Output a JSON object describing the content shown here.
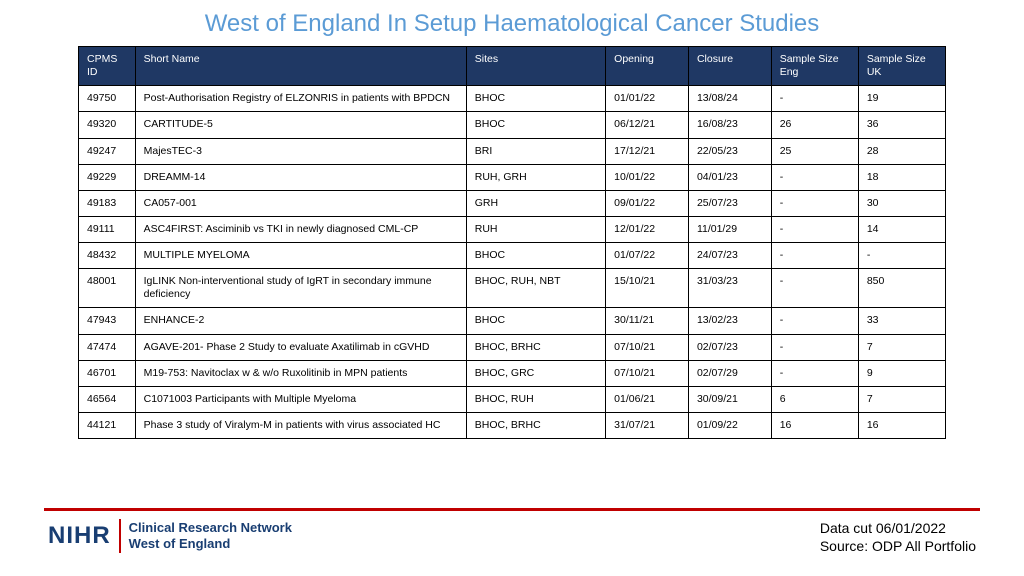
{
  "title": "West of England In Setup Haematological Cancer Studies",
  "colors": {
    "title": "#5b9bd5",
    "header_bg": "#1f3864",
    "accent": "#c00000",
    "nihr": "#193e72"
  },
  "columns": [
    "CPMS ID",
    "Short Name",
    "Sites",
    "Opening",
    "Closure",
    "Sample Size Eng",
    "Sample Size UK"
  ],
  "rows": [
    [
      "49750",
      "Post-Authorisation Registry of ELZONRIS in patients with BPDCN",
      "BHOC",
      "01/01/22",
      "13/08/24",
      "-",
      "19"
    ],
    [
      "49320",
      "CARTITUDE-5",
      "BHOC",
      "06/12/21",
      "16/08/23",
      "26",
      "36"
    ],
    [
      "49247",
      "MajesTEC-3",
      "BRI",
      "17/12/21",
      "22/05/23",
      "25",
      "28"
    ],
    [
      "49229",
      "DREAMM-14",
      "RUH, GRH",
      "10/01/22",
      "04/01/23",
      "-",
      "18"
    ],
    [
      "49183",
      "CA057-001",
      "GRH",
      "09/01/22",
      "25/07/23",
      "-",
      "30"
    ],
    [
      "49111",
      "ASC4FIRST: Asciminib vs TKI in newly diagnosed CML-CP",
      "RUH",
      "12/01/22",
      "11/01/29",
      "-",
      "14"
    ],
    [
      "48432",
      "MULTIPLE MYELOMA",
      "BHOC",
      "01/07/22",
      "24/07/23",
      "-",
      "-"
    ],
    [
      "48001",
      "IgLINK Non-interventional study of IgRT in secondary immune deficiency",
      "BHOC, RUH, NBT",
      "15/10/21",
      "31/03/23",
      "-",
      "850"
    ],
    [
      "47943",
      "ENHANCE-2",
      "BHOC",
      "30/11/21",
      "13/02/23",
      "-",
      "33"
    ],
    [
      "47474",
      "AGAVE-201- Phase 2 Study to evaluate Axatilimab in cGVHD",
      "BHOC, BRHC",
      "07/10/21",
      "02/07/23",
      "-",
      "7"
    ],
    [
      "46701",
      "M19-753: Navitoclax w & w/o Ruxolitinib in MPN patients",
      "BHOC, GRC",
      "07/10/21",
      "02/07/29",
      "-",
      "9"
    ],
    [
      "46564",
      "C1071003 Participants with Multiple Myeloma",
      "BHOC, RUH",
      "01/06/21",
      "30/09/21",
      "6",
      "7"
    ],
    [
      "44121",
      "Phase 3 study of Viralym-M in patients with virus associated HC",
      "BHOC, BRHC",
      "31/07/21",
      "01/09/22",
      "16",
      "16"
    ]
  ],
  "logo": {
    "mark": "NIHR",
    "line1": "Clinical Research Network",
    "line2": "West of England"
  },
  "meta": {
    "line1": "Data cut 06/01/2022",
    "line2": "Source: ODP All Portfolio"
  }
}
